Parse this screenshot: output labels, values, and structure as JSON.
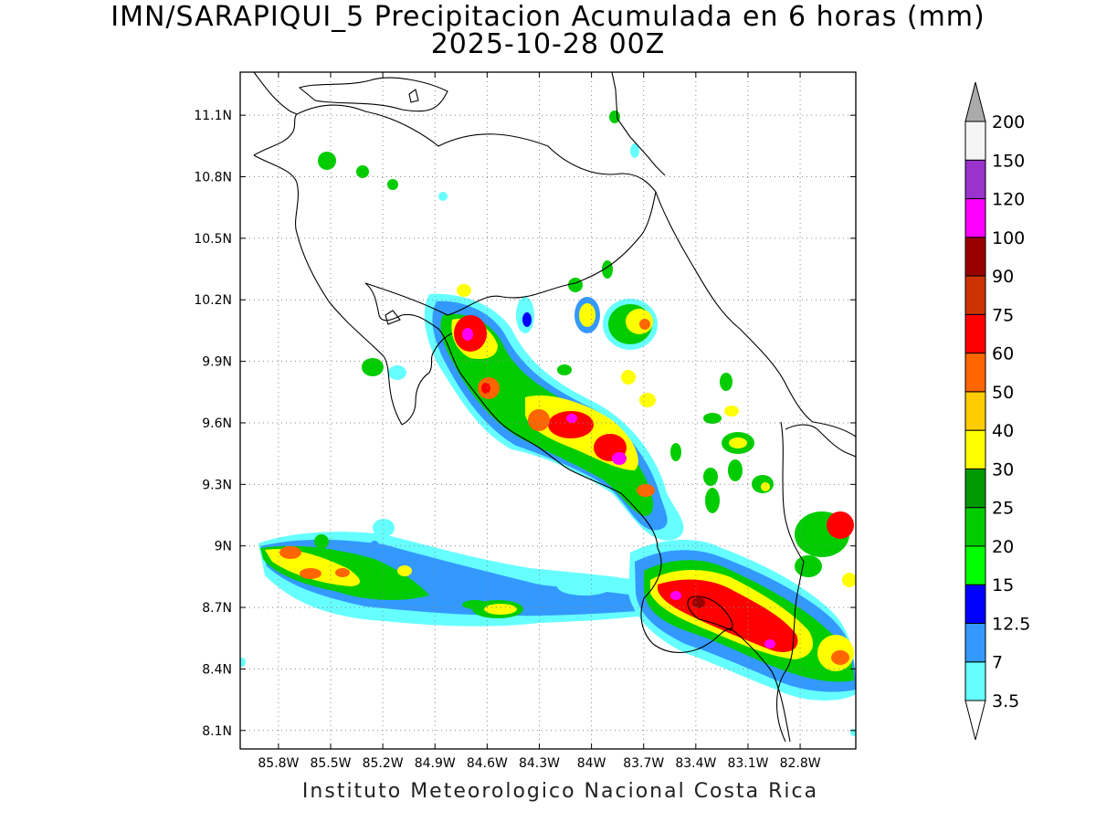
{
  "title": {
    "line1": "IMN/SARAPIQUI_5 Precipitacion Acumulada en 6 horas (mm)",
    "line2": "2025-10-28 00Z"
  },
  "footer": "Instituto Meteorologico Nacional Costa Rica",
  "map": {
    "lon_range": [
      -86.02,
      -82.48
    ],
    "lat_range": [
      8.01,
      11.31
    ],
    "lon_ticks": [
      {
        "value": -85.8,
        "label": "85.8W"
      },
      {
        "value": -85.5,
        "label": "85.5W"
      },
      {
        "value": -85.2,
        "label": "85.2W"
      },
      {
        "value": -84.9,
        "label": "84.9W"
      },
      {
        "value": -84.6,
        "label": "84.6W"
      },
      {
        "value": -84.3,
        "label": "84.3W"
      },
      {
        "value": -84.0,
        "label": "84W"
      },
      {
        "value": -83.7,
        "label": "83.7W"
      },
      {
        "value": -83.4,
        "label": "83.4W"
      },
      {
        "value": -83.1,
        "label": "83.1W"
      },
      {
        "value": -82.8,
        "label": "82.8W"
      }
    ],
    "lat_ticks": [
      {
        "value": 11.1,
        "label": "11.1N"
      },
      {
        "value": 10.8,
        "label": "10.8N"
      },
      {
        "value": 10.5,
        "label": "10.5N"
      },
      {
        "value": 10.2,
        "label": "10.2N"
      },
      {
        "value": 9.9,
        "label": "9.9N"
      },
      {
        "value": 9.6,
        "label": "9.6N"
      },
      {
        "value": 9.3,
        "label": "9.3N"
      },
      {
        "value": 9.0,
        "label": "9N"
      },
      {
        "value": 8.7,
        "label": "8.7N"
      },
      {
        "value": 8.4,
        "label": "8.4N"
      },
      {
        "value": 8.1,
        "label": "8.1N"
      }
    ],
    "grid": "dotted",
    "precip_cells": [
      {
        "lon": -84.72,
        "lat": 10.02,
        "mm": 100
      },
      {
        "lon": -84.62,
        "lat": 9.75,
        "mm": 75
      },
      {
        "lon": -84.25,
        "lat": 9.55,
        "mm": 60
      },
      {
        "lon": -84.0,
        "lat": 9.6,
        "mm": 90
      },
      {
        "lon": -83.9,
        "lat": 9.45,
        "mm": 120
      },
      {
        "lon": -83.7,
        "lat": 9.28,
        "mm": 40
      },
      {
        "lon": -83.55,
        "lat": 8.75,
        "mm": 120
      },
      {
        "lon": -83.35,
        "lat": 8.7,
        "mm": 90
      },
      {
        "lon": -83.1,
        "lat": 8.65,
        "mm": 75
      },
      {
        "lon": -82.85,
        "lat": 8.52,
        "mm": 120
      },
      {
        "lon": -85.8,
        "lat": 8.92,
        "mm": 75
      },
      {
        "lon": -85.55,
        "lat": 8.85,
        "mm": 60
      },
      {
        "lon": -84.55,
        "lat": 8.68,
        "mm": 40
      },
      {
        "lon": -83.9,
        "lat": 10.1,
        "mm": 40
      },
      {
        "lon": -83.75,
        "lat": 10.12,
        "mm": 50
      },
      {
        "lon": -83.3,
        "lat": 9.5,
        "mm": 40
      },
      {
        "lon": -83.05,
        "lat": 9.45,
        "mm": 40
      }
    ]
  },
  "colorbar": {
    "levels": [
      "3.5",
      "7",
      "12.5",
      "15",
      "20",
      "25",
      "30",
      "40",
      "50",
      "60",
      "75",
      "90",
      "100",
      "120",
      "150",
      "200"
    ],
    "colors": [
      "#66ffff",
      "#3399ff",
      "#0000ff",
      "#00ff00",
      "#00cc00",
      "#009900",
      "#ffff00",
      "#ffcc00",
      "#ff6600",
      "#ff0000",
      "#cc3300",
      "#990000",
      "#ff00ff",
      "#9933cc",
      "#f5f5f5",
      "#aaaaaa"
    ],
    "below_color": "#ffffff"
  }
}
